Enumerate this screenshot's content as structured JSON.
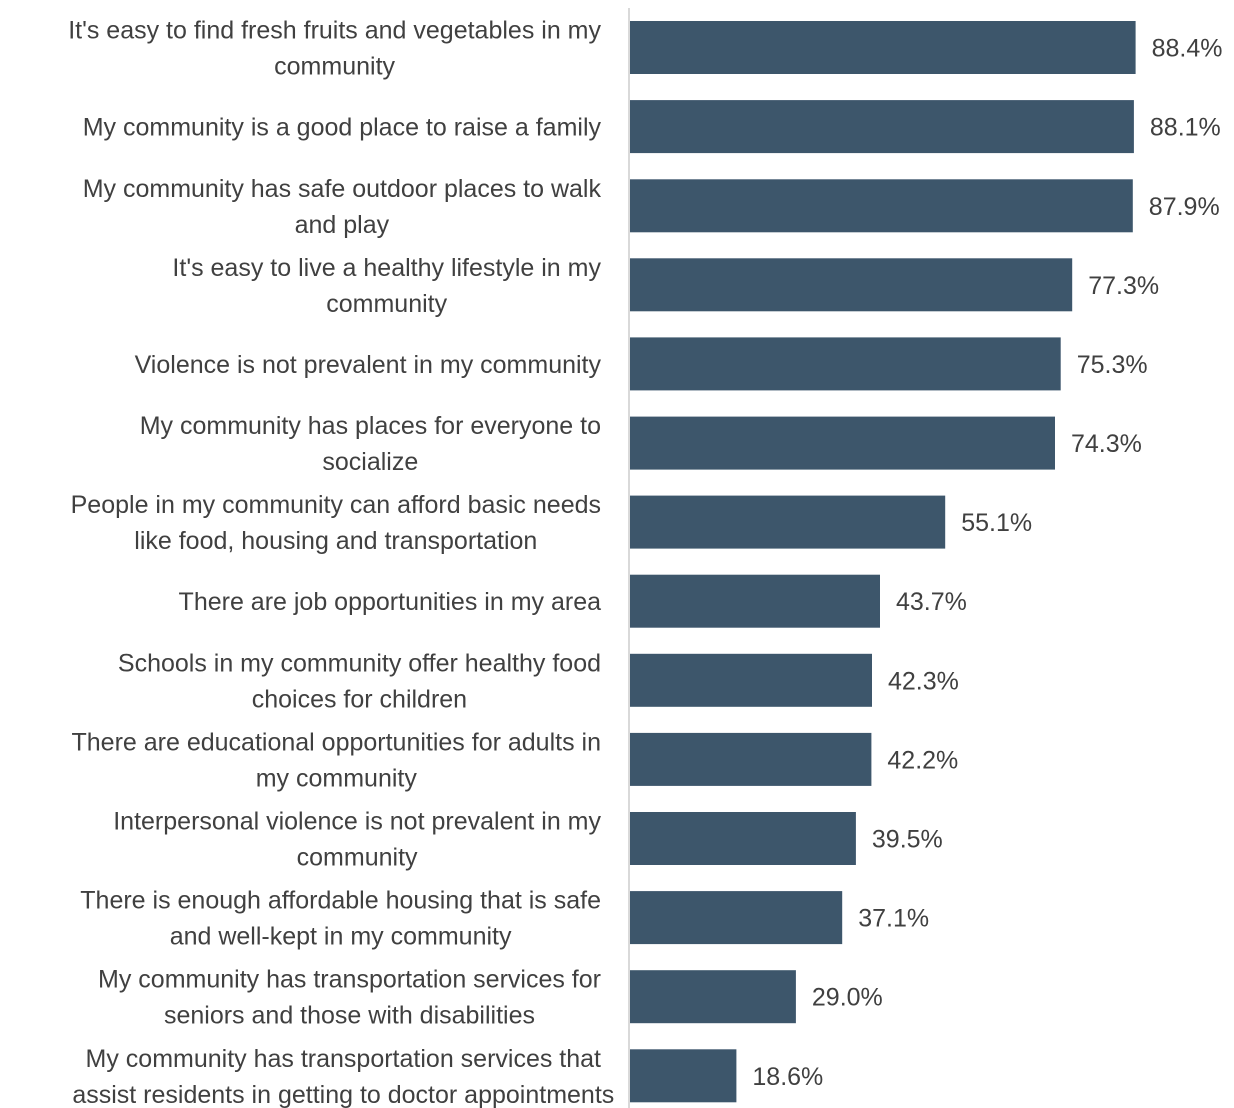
{
  "chart_data": {
    "type": "bar",
    "orientation": "horizontal",
    "categories": [
      [
        "It's easy to find fresh fruits and vegetables in my",
        "community"
      ],
      [
        "My community is a good place to raise a family"
      ],
      [
        "My community has safe outdoor places to walk",
        "and play"
      ],
      [
        "It's easy to live a healthy lifestyle in my",
        "community"
      ],
      [
        "Violence is not prevalent in my community"
      ],
      [
        "My community has places for everyone to",
        "socialize"
      ],
      [
        "People in my community can afford basic needs",
        "like food, housing and transportation"
      ],
      [
        "There are job opportunities in my area"
      ],
      [
        "Schools in my community offer healthy food",
        "choices for children"
      ],
      [
        "There are educational opportunities for adults in",
        "my community"
      ],
      [
        "Interpersonal violence is not prevalent in my",
        "community"
      ],
      [
        "There is enough affordable housing that is safe",
        "and well-kept in my community"
      ],
      [
        "My community has transportation services for",
        "seniors and those with disabilities"
      ],
      [
        "My community has transportation services that",
        "assist residents in getting to doctor appointments"
      ]
    ],
    "values": [
      88.4,
      88.1,
      87.9,
      77.3,
      75.3,
      74.3,
      55.1,
      43.7,
      42.3,
      42.2,
      39.5,
      37.1,
      29.0,
      18.6
    ],
    "value_labels": [
      "88.4%",
      "88.1%",
      "87.9%",
      "77.3%",
      "75.3%",
      "74.3%",
      "55.1%",
      "43.7%",
      "42.3%",
      "42.2%",
      "39.5%",
      "37.1%",
      "29.0%",
      "18.6%"
    ],
    "xlim": [
      0,
      100
    ],
    "grid": false,
    "legend": "none",
    "bar_color": "#3d566b",
    "axis_color": "#d9d9d9"
  }
}
